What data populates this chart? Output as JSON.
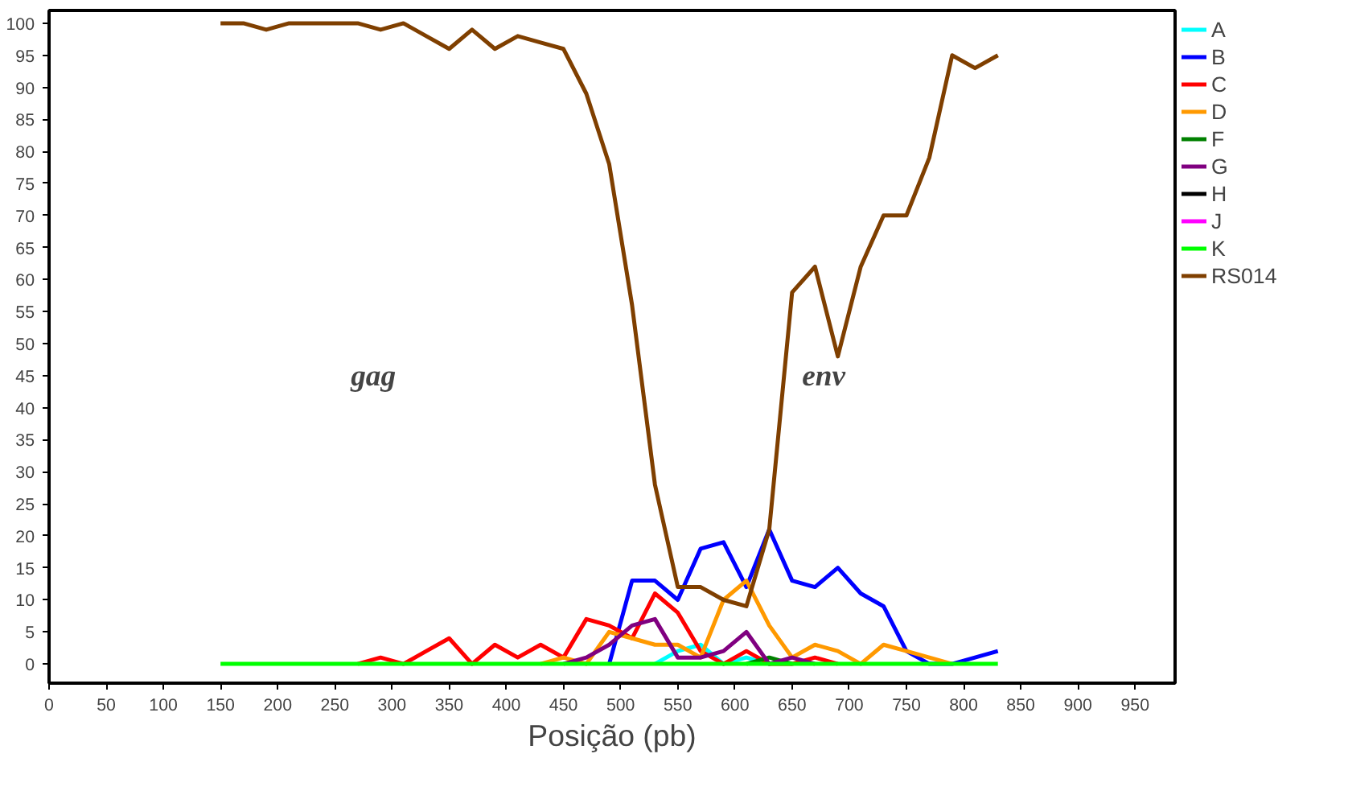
{
  "chart_data": {
    "type": "line",
    "xlabel": "Posição (pb)",
    "x": [
      150,
      170,
      190,
      210,
      230,
      250,
      270,
      290,
      310,
      330,
      350,
      370,
      390,
      410,
      430,
      450,
      470,
      490,
      510,
      530,
      550,
      570,
      590,
      610,
      630,
      650,
      670,
      690,
      710,
      730,
      750,
      770,
      790,
      810,
      830
    ],
    "series": [
      {
        "name": "A",
        "color": "#00ffff",
        "values": [
          null,
          null,
          null,
          null,
          null,
          null,
          null,
          null,
          null,
          null,
          null,
          null,
          null,
          null,
          null,
          null,
          null,
          null,
          null,
          0,
          2,
          3,
          0,
          1,
          0,
          null,
          null,
          null,
          null,
          null,
          null,
          null,
          null,
          null,
          null
        ]
      },
      {
        "name": "B",
        "color": "#0000ff",
        "values": [
          null,
          null,
          null,
          null,
          null,
          null,
          null,
          null,
          null,
          null,
          null,
          null,
          null,
          null,
          null,
          null,
          null,
          0,
          13,
          13,
          10,
          18,
          19,
          12,
          21,
          13,
          12,
          15,
          11,
          9,
          2,
          0,
          0,
          1,
          2
        ]
      },
      {
        "name": "C",
        "color": "#ff0000",
        "values": [
          null,
          null,
          null,
          null,
          null,
          null,
          0,
          1,
          0,
          2,
          4,
          0,
          3,
          1,
          3,
          1,
          7,
          6,
          4,
          11,
          8,
          2,
          0,
          2,
          0,
          0,
          1,
          0,
          null,
          null,
          null,
          null,
          null,
          null,
          null
        ]
      },
      {
        "name": "D",
        "color": "#ff9900",
        "values": [
          null,
          null,
          null,
          null,
          null,
          null,
          null,
          null,
          null,
          null,
          null,
          null,
          null,
          null,
          0,
          1,
          0,
          5,
          4,
          3,
          3,
          1,
          10,
          13,
          6,
          1,
          3,
          2,
          0,
          3,
          2,
          1,
          0,
          null,
          null
        ]
      },
      {
        "name": "F",
        "color": "#008000",
        "values": [
          null,
          null,
          null,
          null,
          null,
          null,
          null,
          null,
          null,
          null,
          null,
          null,
          null,
          null,
          null,
          null,
          null,
          null,
          null,
          null,
          null,
          null,
          null,
          0,
          1,
          0,
          null,
          null,
          null,
          null,
          null,
          null,
          null,
          null,
          null
        ]
      },
      {
        "name": "G",
        "color": "#800080",
        "values": [
          null,
          null,
          null,
          null,
          null,
          null,
          null,
          null,
          null,
          null,
          null,
          null,
          null,
          null,
          null,
          0,
          1,
          3,
          6,
          7,
          1,
          1,
          2,
          5,
          0,
          1,
          0,
          null,
          null,
          null,
          null,
          null,
          null,
          null,
          null
        ]
      },
      {
        "name": "H",
        "color": "#000000",
        "values": [
          null,
          null,
          null,
          null,
          null,
          null,
          null,
          null,
          null,
          null,
          null,
          null,
          null,
          null,
          null,
          null,
          null,
          null,
          null,
          null,
          null,
          null,
          null,
          null,
          null,
          null,
          null,
          null,
          null,
          null,
          null,
          null,
          null,
          null,
          null
        ]
      },
      {
        "name": "J",
        "color": "#ff00ff",
        "values": [
          null,
          null,
          null,
          null,
          null,
          null,
          null,
          null,
          null,
          null,
          null,
          null,
          null,
          null,
          null,
          null,
          null,
          null,
          null,
          null,
          null,
          null,
          null,
          null,
          null,
          null,
          null,
          null,
          null,
          null,
          null,
          null,
          null,
          null,
          null
        ]
      },
      {
        "name": "K",
        "color": "#00ff00",
        "values": [
          0,
          0,
          0,
          0,
          0,
          0,
          0,
          0,
          0,
          0,
          0,
          0,
          0,
          0,
          0,
          0,
          0,
          0,
          0,
          0,
          0,
          0,
          0,
          0,
          0,
          0,
          0,
          0,
          0,
          0,
          0,
          0,
          0,
          0,
          0
        ]
      },
      {
        "name": "RS014",
        "color": "#7f3f00",
        "values": [
          100,
          100,
          99,
          100,
          100,
          100,
          100,
          99,
          100,
          98,
          96,
          99,
          96,
          98,
          97,
          96,
          89,
          78,
          56,
          28,
          12,
          12,
          10,
          9,
          21,
          58,
          62,
          48,
          62,
          70,
          70,
          79,
          95,
          93,
          95
        ]
      }
    ],
    "xlim": [
      0,
      985
    ],
    "ylim": [
      -3,
      102
    ],
    "xticks": [
      0,
      50,
      100,
      150,
      200,
      250,
      300,
      350,
      400,
      450,
      500,
      550,
      600,
      650,
      700,
      750,
      800,
      850,
      900,
      950
    ],
    "yticks": [
      0,
      5,
      10,
      15,
      20,
      25,
      30,
      35,
      40,
      45,
      50,
      55,
      60,
      65,
      70,
      75,
      80,
      85,
      90,
      95,
      100
    ],
    "annotations": [
      "gag",
      "env"
    ],
    "grid": false,
    "legend": "right",
    "marker": "none",
    "line_style": "solid"
  }
}
